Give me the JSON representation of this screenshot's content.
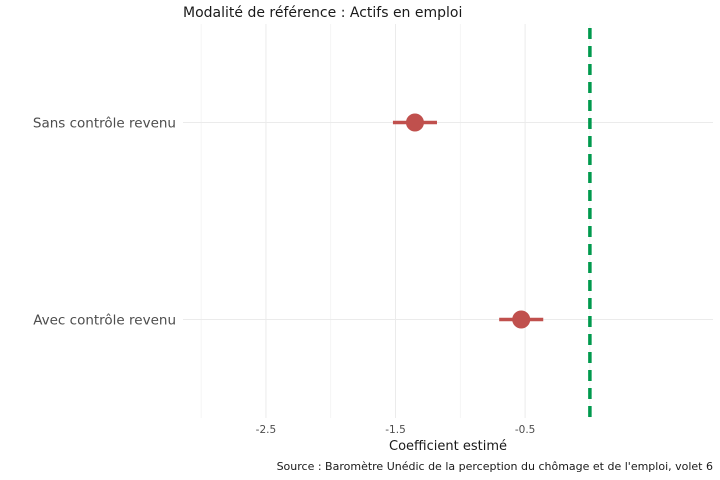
{
  "chart_data": {
    "type": "scatter",
    "subtitle": "Modalité de référence : Actifs en emploi",
    "xlabel": "Coefficient estimé",
    "caption": "Source : Baromètre Unédic de la perception du chômage et de l'emploi, volet 6",
    "xlim": [
      -3.14,
      0.95
    ],
    "x_ticks": [
      -2.5,
      -1.5,
      -0.5
    ],
    "x_tick_labels": [
      "-2.5",
      "-1.5",
      "-0.5"
    ],
    "grid": true,
    "categories": [
      "Sans contrôle revenu",
      "Avec contrôle revenu"
    ],
    "points": [
      {
        "label": "Sans contrôle revenu",
        "estimate": -1.35,
        "ci_low": -1.52,
        "ci_high": -1.18
      },
      {
        "label": "Avec contrôle revenu",
        "estimate": -0.53,
        "ci_low": -0.7,
        "ci_high": -0.36
      }
    ],
    "reference_line": {
      "x": 0,
      "style": "dashed"
    },
    "colors": {
      "point": "#c0504d",
      "reference": "#00994d",
      "grid": "#ebebeb"
    }
  }
}
